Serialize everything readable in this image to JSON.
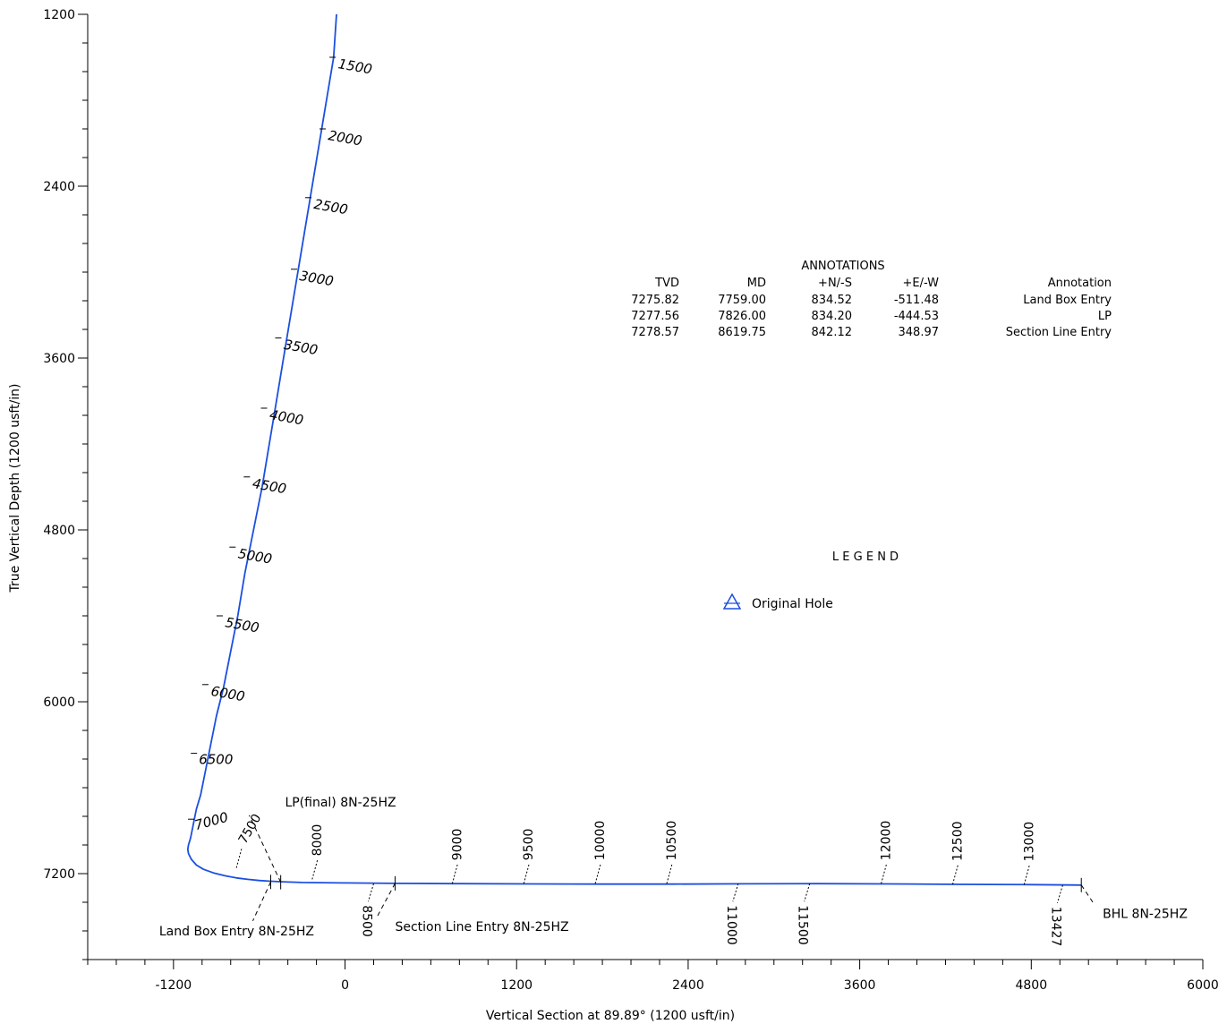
{
  "chart_data": {
    "type": "line",
    "xlabel": "Vertical Section at 89.89° (1200 usft/in)",
    "ylabel": "True Vertical Depth (1200 usft/in)",
    "xlim": [
      -1800,
      6000
    ],
    "ylim": [
      1200,
      7800
    ],
    "y_inverted": true,
    "x_ticks": [
      -1200,
      0,
      1200,
      2400,
      3600,
      4800,
      6000
    ],
    "y_ticks": [
      1200,
      2400,
      3600,
      4800,
      6000,
      7200
    ],
    "grid": false,
    "series": [
      {
        "name": "Original Hole",
        "color": "#1a4fe0",
        "x": [
          -60,
          -80,
          -130,
          -180,
          -230,
          -280,
          -330,
          -380,
          -430,
          -480,
          -530,
          -580,
          -640,
          -700,
          -750,
          -800,
          -850,
          -900,
          -940,
          -980,
          -1010,
          -1040,
          -1060,
          -1080,
          -1095,
          -1100,
          -1095,
          -1075,
          -1040,
          -990,
          -920,
          -840,
          -760,
          -680,
          -600,
          -520,
          -440,
          -300,
          0,
          350,
          800,
          1300,
          1800,
          2300,
          2800,
          3300,
          3800,
          4300,
          4800,
          5150
        ],
        "y": [
          1200,
          1500,
          1800,
          2100,
          2400,
          2700,
          3000,
          3300,
          3600,
          3900,
          4200,
          4500,
          4800,
          5100,
          5400,
          5650,
          5900,
          6100,
          6300,
          6500,
          6650,
          6750,
          6850,
          6950,
          7000,
          7030,
          7060,
          7100,
          7140,
          7170,
          7195,
          7215,
          7230,
          7240,
          7248,
          7253,
          7257,
          7262,
          7265,
          7268,
          7270,
          7272,
          7273,
          7273,
          7271,
          7270,
          7272,
          7275,
          7277,
          7280
        ]
      }
    ],
    "md_labels": [
      {
        "label": "1500",
        "x": -90,
        "y": 1500,
        "side": "right",
        "rotate": 10
      },
      {
        "label": "2000",
        "x": -160,
        "y": 2000,
        "side": "right",
        "rotate": 10
      },
      {
        "label": "2500",
        "x": -260,
        "y": 2480,
        "side": "right",
        "rotate": 10
      },
      {
        "label": "3000",
        "x": -360,
        "y": 2980,
        "side": "right",
        "rotate": 10
      },
      {
        "label": "3500",
        "x": -470,
        "y": 3460,
        "side": "right",
        "rotate": 10
      },
      {
        "label": "4000",
        "x": -570,
        "y": 3950,
        "side": "right",
        "rotate": 10
      },
      {
        "label": "4500",
        "x": -690,
        "y": 4430,
        "side": "right",
        "rotate": 10
      },
      {
        "label": "5000",
        "x": -790,
        "y": 4920,
        "side": "right",
        "rotate": 10
      },
      {
        "label": "5500",
        "x": -880,
        "y": 5400,
        "side": "right",
        "rotate": 10
      },
      {
        "label": "6000",
        "x": -980,
        "y": 5880,
        "side": "right",
        "rotate": 10
      },
      {
        "label": "6500",
        "x": -1060,
        "y": 6360,
        "side": "right",
        "rotate": 0
      },
      {
        "label": "7000",
        "x": -1080,
        "y": 6820,
        "side": "right",
        "rotate": -15
      },
      {
        "label": "7500",
        "x": -760,
        "y": 7160,
        "side": "up",
        "rotate": -60
      },
      {
        "label": "8000",
        "x": -230,
        "y": 7240,
        "side": "up",
        "rotate": -90
      },
      {
        "label": "8500",
        "x": 200,
        "y": 7270,
        "side": "down",
        "rotate": 90
      },
      {
        "label": "9000",
        "x": 750,
        "y": 7270,
        "side": "up",
        "rotate": -90
      },
      {
        "label": "9500",
        "x": 1250,
        "y": 7270,
        "side": "up",
        "rotate": -90
      },
      {
        "label": "10000",
        "x": 1750,
        "y": 7270,
        "side": "up",
        "rotate": -90
      },
      {
        "label": "10500",
        "x": 2250,
        "y": 7270,
        "side": "up",
        "rotate": -90
      },
      {
        "label": "11000",
        "x": 2750,
        "y": 7270,
        "side": "down",
        "rotate": 90
      },
      {
        "label": "11500",
        "x": 3250,
        "y": 7270,
        "side": "down",
        "rotate": 90
      },
      {
        "label": "12000",
        "x": 3750,
        "y": 7270,
        "side": "up",
        "rotate": -90
      },
      {
        "label": "12500",
        "x": 4250,
        "y": 7275,
        "side": "up",
        "rotate": -90
      },
      {
        "label": "13000",
        "x": 4750,
        "y": 7277,
        "side": "up",
        "rotate": -90
      },
      {
        "label": "13427",
        "x": 5020,
        "y": 7280,
        "side": "down",
        "rotate": 90
      }
    ],
    "point_annotations": [
      {
        "label": "LP(final) 8N-25HZ",
        "x": -450,
        "y": 7260,
        "text_x": -420,
        "text_y": 6730,
        "anchor": "start"
      },
      {
        "label": "Land Box Entry 8N-25HZ",
        "x": -520,
        "y": 7258,
        "text_x": -1300,
        "text_y": 7630,
        "anchor": "start"
      },
      {
        "label": "Section Line Entry 8N-25HZ",
        "x": 350,
        "y": 7268,
        "text_x": 350,
        "text_y": 7600,
        "anchor": "start"
      },
      {
        "label": "BHL 8N-25HZ",
        "x": 5150,
        "y": 7280,
        "text_x": 5300,
        "text_y": 7510,
        "anchor": "start"
      }
    ],
    "annotations_table": {
      "title": "ANNOTATIONS",
      "headers": [
        "TVD",
        "MD",
        "+N/-S",
        "+E/-W",
        "Annotation"
      ],
      "rows": [
        [
          "7275.82",
          "7759.00",
          "834.52",
          "-511.48",
          "Land Box Entry"
        ],
        [
          "7277.56",
          "7826.00",
          "834.20",
          "-444.53",
          "LP"
        ],
        [
          "7278.57",
          "8619.75",
          "842.12",
          "348.97",
          "Section Line Entry"
        ]
      ]
    },
    "legend": {
      "title": "L E G E N D",
      "entries": [
        {
          "name": "Original Hole",
          "color": "#1a4fe0",
          "symbol": "triangle"
        }
      ],
      "placement": "center-right"
    }
  }
}
